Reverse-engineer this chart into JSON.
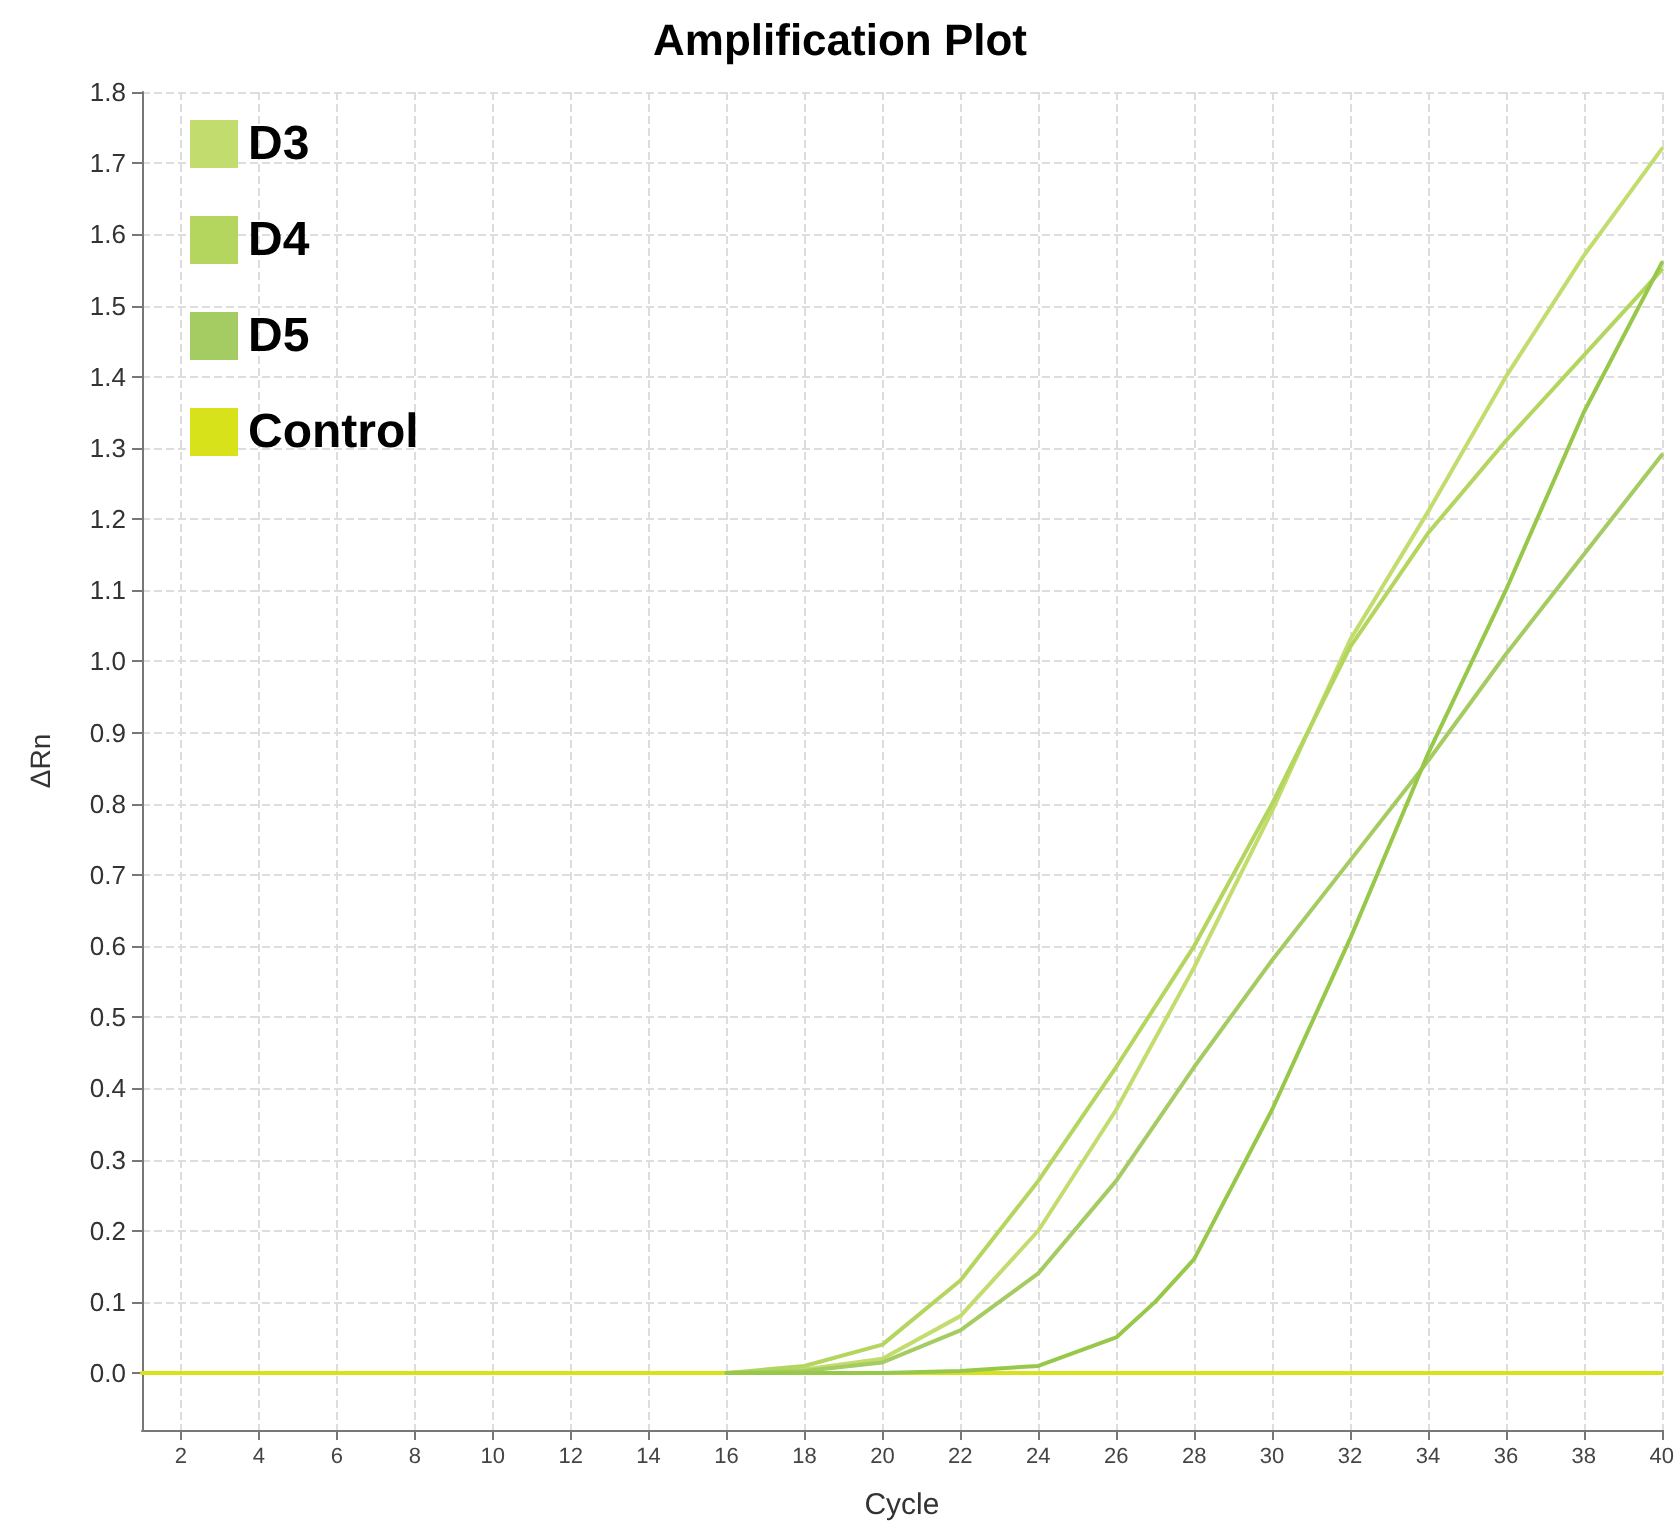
{
  "chart_data": {
    "type": "line",
    "title": "Amplification Plot",
    "xlabel": "Cycle",
    "ylabel": "ΔRn",
    "xlim": [
      1,
      40
    ],
    "xticks": [
      2,
      4,
      6,
      8,
      10,
      12,
      14,
      16,
      18,
      20,
      22,
      24,
      26,
      28,
      30,
      32,
      34,
      36,
      38,
      40
    ],
    "ylim": [
      -0.08,
      1.8
    ],
    "yticks": [
      {
        "value": 0,
        "label": "0.0"
      },
      {
        "value": 0.1,
        "label": "0.1"
      },
      {
        "value": 0.2,
        "label": "0.2"
      },
      {
        "value": 0.3,
        "label": "0.3"
      },
      {
        "value": 0.4,
        "label": "0.4"
      },
      {
        "value": 0.5,
        "label": "0.5"
      },
      {
        "value": 0.6,
        "label": "0.6"
      },
      {
        "value": 0.7,
        "label": "0.7"
      },
      {
        "value": 0.8,
        "label": "0.8"
      },
      {
        "value": 0.9,
        "label": "0.9"
      },
      {
        "value": 1,
        "label": "1.0"
      },
      {
        "value": 1.1,
        "label": "1.1"
      },
      {
        "value": 1.2,
        "label": "1.2"
      },
      {
        "value": 1.3,
        "label": "1.3"
      },
      {
        "value": 1.4,
        "label": "1.4"
      },
      {
        "value": 1.5,
        "label": "1.5"
      },
      {
        "value": 1.6,
        "label": "1.6"
      },
      {
        "value": 1.7,
        "label": "1.7"
      },
      {
        "value": 1.8,
        "label": "1.8"
      }
    ],
    "grid": true,
    "legend": "top left",
    "marker": "none",
    "line_style": "solid",
    "series": [
      {
        "name": "D3",
        "color": "#c2dc6e",
        "x": [
          16,
          18,
          20,
          22,
          24,
          26,
          28,
          30,
          32,
          34,
          36,
          38,
          40
        ],
        "values": [
          0,
          0.005,
          0.02,
          0.08,
          0.2,
          0.37,
          0.57,
          0.79,
          1.03,
          1.21,
          1.4,
          1.57,
          1.72
        ]
      },
      {
        "name": "D4",
        "color": "#b4d65e",
        "x": [
          16,
          18,
          20,
          22,
          24,
          26,
          28,
          30,
          32,
          34,
          36,
          38,
          40
        ],
        "values": [
          0,
          0.01,
          0.04,
          0.13,
          0.27,
          0.43,
          0.6,
          0.8,
          1.02,
          1.18,
          1.31,
          1.43,
          1.55
        ]
      },
      {
        "name": "D5",
        "color": "#a5cc62",
        "x": [
          16,
          18,
          20,
          22,
          24,
          26,
          28,
          30,
          32,
          34,
          36,
          38,
          40
        ],
        "values": [
          0,
          0.003,
          0.015,
          0.06,
          0.14,
          0.27,
          0.43,
          0.58,
          0.72,
          0.86,
          1.01,
          1.15,
          1.29
        ]
      },
      {
        "name": "Control",
        "color": "#d8e21a",
        "x": [
          1,
          4,
          8,
          12,
          14,
          26,
          30,
          34,
          38,
          40
        ],
        "values": [
          0,
          0,
          0,
          0,
          0,
          0,
          0,
          0,
          0,
          0
        ]
      },
      {
        "color": "#98c84a",
        "x": [
          16,
          20,
          22,
          24,
          26,
          27,
          28,
          30,
          32,
          34,
          36,
          38,
          40
        ],
        "values": [
          0,
          0,
          0.003,
          0.01,
          0.05,
          0.1,
          0.16,
          0.37,
          0.61,
          0.87,
          1.1,
          1.35,
          1.56
        ]
      }
    ]
  }
}
